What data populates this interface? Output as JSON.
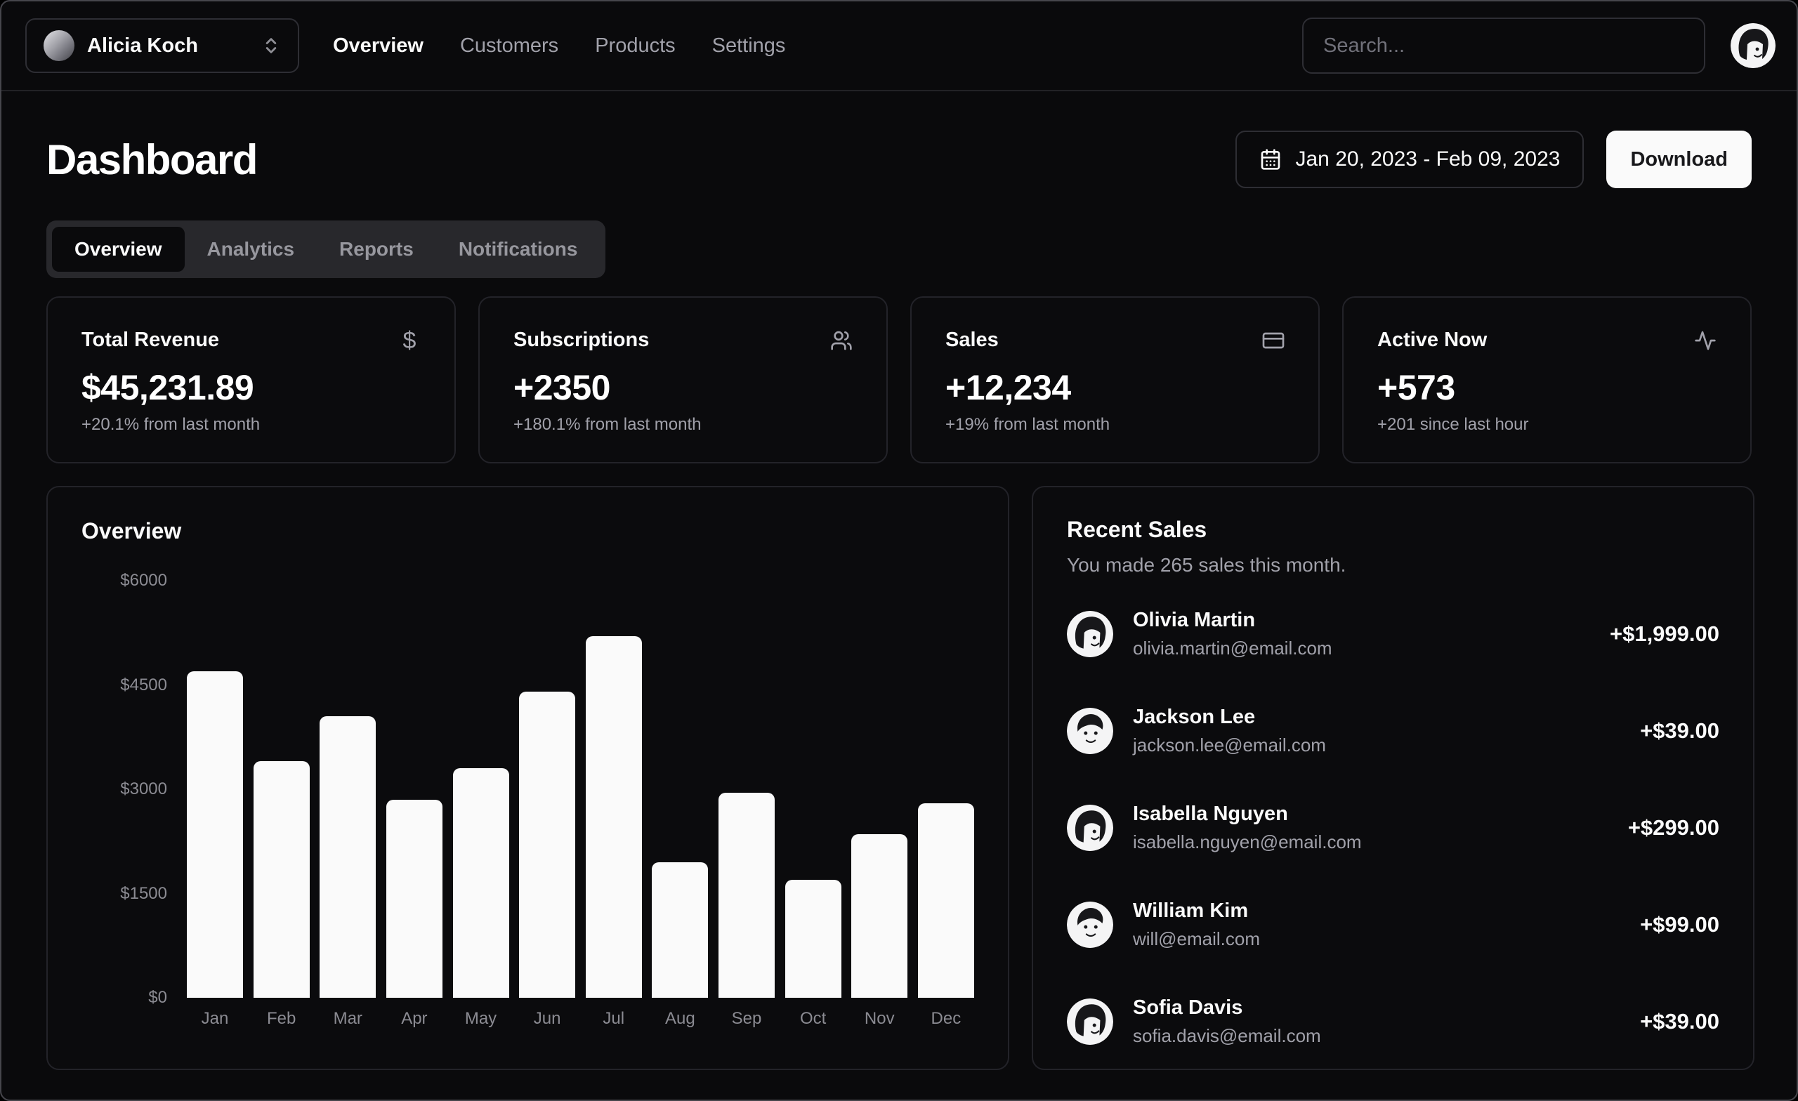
{
  "header": {
    "team_switcher": {
      "label": "Alicia Koch",
      "icon": "chevrons-up-down-icon"
    },
    "nav": [
      {
        "label": "Overview",
        "active": true
      },
      {
        "label": "Customers",
        "active": false
      },
      {
        "label": "Products",
        "active": false
      },
      {
        "label": "Settings",
        "active": false
      }
    ],
    "search": {
      "placeholder": "Search..."
    },
    "user_avatar": "avatar-female"
  },
  "page": {
    "title": "Dashboard",
    "date_range": "Jan 20, 2023 - Feb 09, 2023",
    "date_icon": "calendar-icon",
    "download_label": "Download",
    "tabs": [
      {
        "label": "Overview",
        "active": true
      },
      {
        "label": "Analytics",
        "active": false
      },
      {
        "label": "Reports",
        "active": false
      },
      {
        "label": "Notifications",
        "active": false
      }
    ]
  },
  "stats": [
    {
      "title": "Total Revenue",
      "icon": "dollar-icon",
      "value": "$45,231.89",
      "change": "+20.1% from last month"
    },
    {
      "title": "Subscriptions",
      "icon": "users-icon",
      "value": "+2350",
      "change": "+180.1% from last month"
    },
    {
      "title": "Sales",
      "icon": "credit-card-icon",
      "value": "+12,234",
      "change": "+19% from last month"
    },
    {
      "title": "Active Now",
      "icon": "activity-icon",
      "value": "+573",
      "change": "+201 since last hour"
    }
  ],
  "chart_data": {
    "type": "bar",
    "title": "Overview",
    "categories": [
      "Jan",
      "Feb",
      "Mar",
      "Apr",
      "May",
      "Jun",
      "Jul",
      "Aug",
      "Sep",
      "Oct",
      "Nov",
      "Dec"
    ],
    "values": [
      4700,
      3400,
      4050,
      2850,
      3300,
      4400,
      5200,
      1950,
      2950,
      1700,
      2350,
      2800
    ],
    "xlabel": "",
    "ylabel": "",
    "ylim": [
      0,
      6000
    ],
    "ytick_labels": [
      "$6000",
      "$4500",
      "$3000",
      "$1500",
      "$0"
    ],
    "grid": false,
    "legend": "none",
    "bar_color": "#fafafa"
  },
  "recent_sales": {
    "title": "Recent Sales",
    "subtitle": "You made 265 sales this month.",
    "items": [
      {
        "name": "Olivia Martin",
        "email": "olivia.martin@email.com",
        "amount": "+$1,999.00",
        "avatar": "avatar-female"
      },
      {
        "name": "Jackson Lee",
        "email": "jackson.lee@email.com",
        "amount": "+$39.00",
        "avatar": "avatar-male"
      },
      {
        "name": "Isabella Nguyen",
        "email": "isabella.nguyen@email.com",
        "amount": "+$299.00",
        "avatar": "avatar-female"
      },
      {
        "name": "William Kim",
        "email": "will@email.com",
        "amount": "+$99.00",
        "avatar": "avatar-male"
      },
      {
        "name": "Sofia Davis",
        "email": "sofia.davis@email.com",
        "amount": "+$39.00",
        "avatar": "avatar-female"
      }
    ]
  },
  "colors": {
    "background": "#0a0a0c",
    "card_border": "#232329",
    "muted_foreground": "#a1a1aa",
    "foreground": "#fafafa",
    "bar": "#fafafa",
    "accent_button_bg": "#fafafa",
    "accent_button_text": "#18181b"
  }
}
